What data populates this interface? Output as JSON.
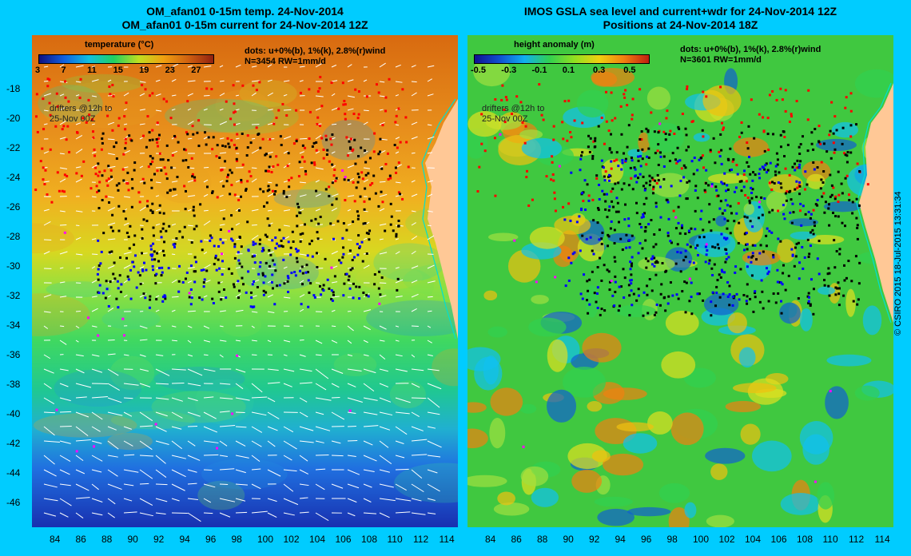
{
  "left": {
    "title_line1": "OM_afan01 0-15m temp. 24-Nov-2014",
    "title_line2": "OM_afan01 0-15m current for 24-Nov-2014 12Z",
    "colorbar_label": "temperature (°C)",
    "colorbar_ticks": [
      "3",
      "7",
      "11",
      "15",
      "19",
      "23",
      "27"
    ],
    "dots_note": "dots: u+0%(b), 1%(k), 2.8%(r)wind",
    "count_note": "N=3454  RW=1mm/d",
    "drifters_note_1": "drifters @12h to",
    "drifters_note_2": "25-Nov 00Z"
  },
  "right": {
    "title_line1": "IMOS GSLA sea level and current+wdr for 24-Nov-2014 12Z",
    "title_line2": "Positions at 24-Nov-2014 18Z",
    "colorbar_label": "height anomaly (m)",
    "colorbar_ticks": [
      "-0.5",
      "-0.3",
      "-0.1",
      "0.1",
      "0.3",
      "0.5"
    ],
    "dots_note": "dots: u+0%(b), 1%(k), 2.8%(r)wind",
    "count_note": "N=3601  RW=1mm/d",
    "drifters_note_1": "drifters @12h to",
    "drifters_note_2": "25-Nov 00Z"
  },
  "axes": {
    "lon_ticks": [
      "84",
      "86",
      "88",
      "90",
      "92",
      "94",
      "96",
      "98",
      "100",
      "102",
      "104",
      "106",
      "108",
      "110",
      "112",
      "114"
    ],
    "lat_ticks": [
      "-18",
      "-20",
      "-22",
      "-24",
      "-26",
      "-28",
      "-30",
      "-32",
      "-34",
      "-36",
      "-38",
      "-40",
      "-42",
      "-44",
      "-46"
    ]
  },
  "credit": "© CSIRO 2015   18-Jul-2015 13:31:34",
  "colors": {
    "background": "#00ccff",
    "land": "#ffc896",
    "coast": "#00e0d0",
    "dot_blue": "#0000ff",
    "dot_black": "#000000",
    "dot_red": "#ff0000",
    "dot_magenta": "#ff00ff"
  }
}
